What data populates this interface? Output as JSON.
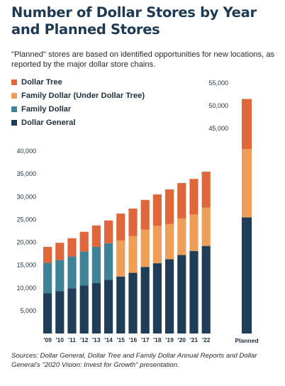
{
  "title": "Number of Dollar Stores by Year and Planned Stores",
  "subtitle": "\"Planned\" stores are based on identified opportunities for new locations, as reported by the major dollar store chains.",
  "source": "Sources: Dollar General, Dollar Tree and Family Dollar Annual Reports and Dollar General's \"2020 Vision: Invest for Growth\" presentation.",
  "legend": [
    {
      "label": "Dollar Tree",
      "color": "#e0673a"
    },
    {
      "label": "Family Dollar (Under Dollar Tree)",
      "color": "#ef9e57"
    },
    {
      "label": "Family Dollar",
      "color": "#3d8296"
    },
    {
      "label": "Dollar General",
      "color": "#1f3d56"
    }
  ],
  "chart_data": [
    {
      "type": "bar",
      "stacked": true,
      "categories": [
        "'09",
        "'10",
        "'11",
        "'12",
        "'13",
        "'14",
        "'15",
        "'16",
        "'17",
        "'18",
        "'19",
        "'20",
        "'21",
        "'22"
      ],
      "series": [
        {
          "name": "Dollar General",
          "color": "#1f3d56",
          "values": [
            8800,
            9300,
            9900,
            10500,
            11100,
            11800,
            12500,
            13300,
            14600,
            15400,
            16300,
            17200,
            18100,
            19200
          ]
        },
        {
          "name": "Family Dollar",
          "color": "#3d8296",
          "values": [
            6700,
            6800,
            7000,
            7500,
            7900,
            8000,
            0,
            0,
            0,
            0,
            0,
            0,
            0,
            0
          ]
        },
        {
          "name": "Family Dollar (Under Dollar Tree)",
          "color": "#ef9e57",
          "values": [
            0,
            0,
            0,
            0,
            0,
            0,
            7900,
            8100,
            8200,
            8200,
            7700,
            8000,
            8000,
            8400
          ]
        },
        {
          "name": "Dollar Tree",
          "color": "#e0673a",
          "values": [
            3500,
            3800,
            4000,
            4300,
            4700,
            5000,
            5900,
            6000,
            6500,
            6900,
            7600,
            7800,
            7800,
            7900
          ]
        }
      ],
      "ylim": [
        0,
        40000
      ],
      "yticks": [
        "5,000",
        "10,000",
        "15,000",
        "20,000",
        "25,000",
        "30,000",
        "35,000",
        "40,000"
      ],
      "ytick_values": [
        5000,
        10000,
        15000,
        20000,
        25000,
        30000,
        35000,
        40000
      ],
      "grid": false
    },
    {
      "type": "bar",
      "stacked": true,
      "categories": [
        "Planned"
      ],
      "series": [
        {
          "name": "Dollar General",
          "color": "#1f3d56",
          "values": [
            25500
          ]
        },
        {
          "name": "Family Dollar (Under Dollar Tree)",
          "color": "#ef9e57",
          "values": [
            15000
          ]
        },
        {
          "name": "Dollar Tree",
          "color": "#e0673a",
          "values": [
            11000
          ]
        }
      ],
      "ylim": [
        0,
        55000
      ],
      "yticks": [
        "45,000",
        "50,000",
        "55,000"
      ],
      "ytick_values": [
        45000,
        50000,
        55000
      ],
      "grid": false
    }
  ]
}
